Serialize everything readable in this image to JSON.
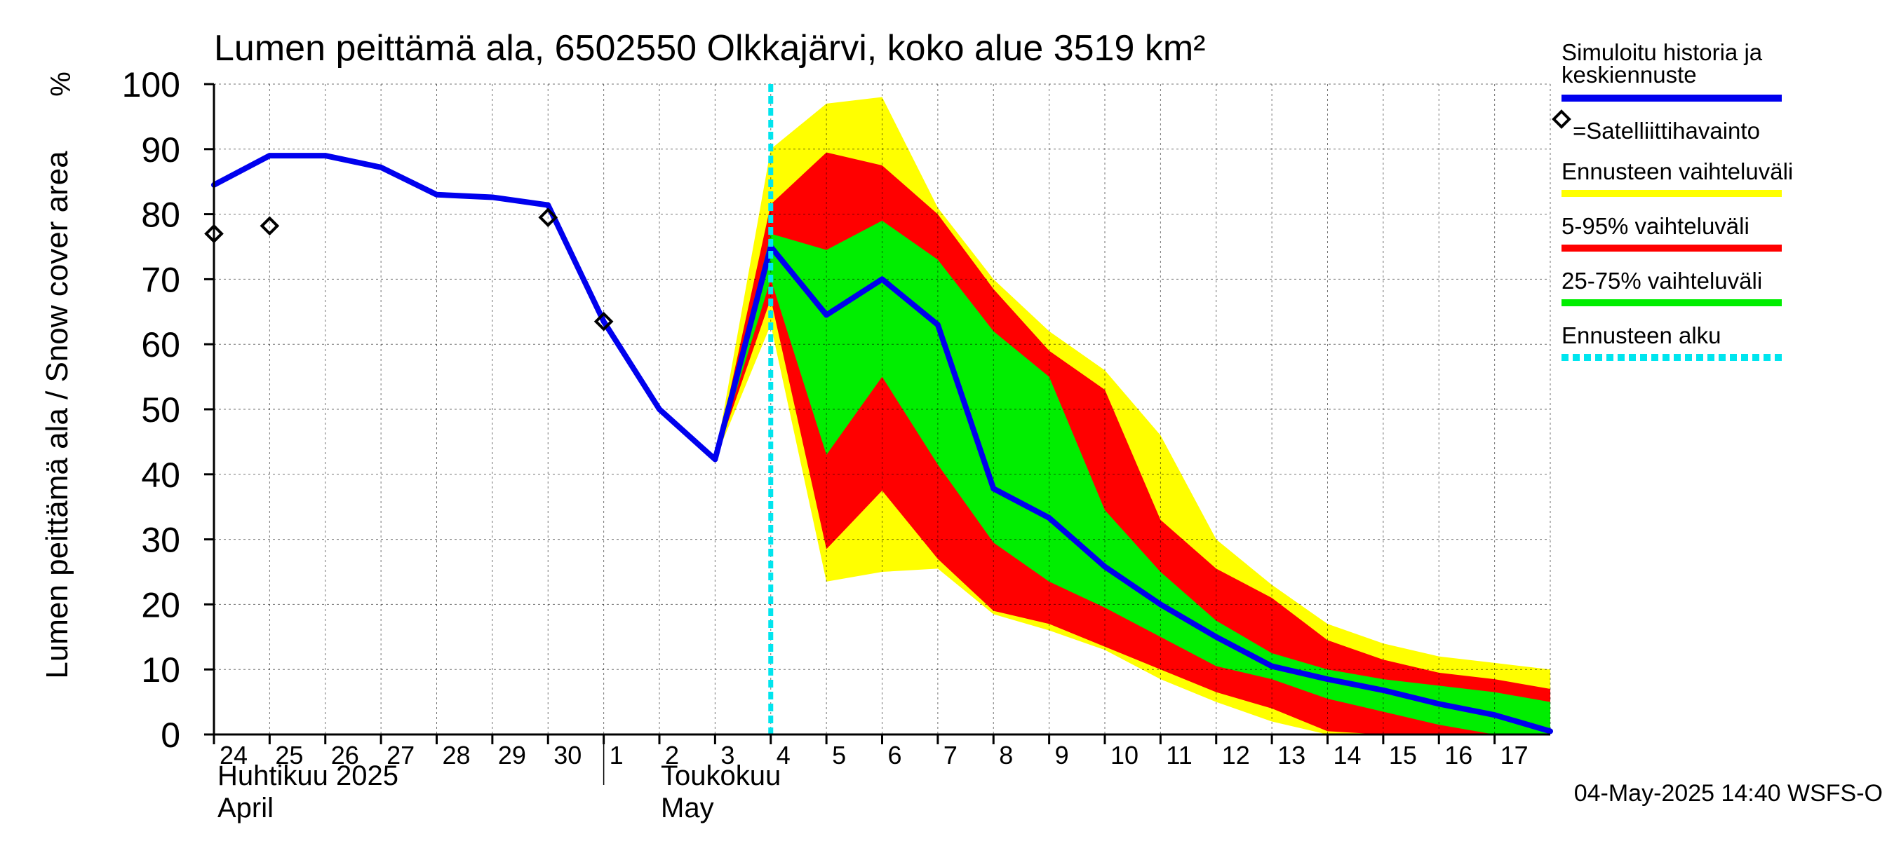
{
  "chart_data": {
    "type": "area",
    "title": "Lumen peittämä ala, 6502550 Olkkajärvi, koko alue 3519 km²",
    "ylabel": "Lumen peittämä ala / Snow cover area",
    "yunit": "%",
    "ylim": [
      0,
      100
    ],
    "yticks": [
      0,
      10,
      20,
      30,
      40,
      50,
      60,
      70,
      80,
      90,
      100
    ],
    "x_day_range": [
      0,
      24
    ],
    "x_ticks": [
      {
        "day": 0,
        "label": "24"
      },
      {
        "day": 1,
        "label": "25"
      },
      {
        "day": 2,
        "label": "26"
      },
      {
        "day": 3,
        "label": "27"
      },
      {
        "day": 4,
        "label": "28"
      },
      {
        "day": 5,
        "label": "29"
      },
      {
        "day": 6,
        "label": "30"
      },
      {
        "day": 7,
        "label": "1"
      },
      {
        "day": 8,
        "label": "2"
      },
      {
        "day": 9,
        "label": "3"
      },
      {
        "day": 10,
        "label": "4"
      },
      {
        "day": 11,
        "label": "5"
      },
      {
        "day": 12,
        "label": "6"
      },
      {
        "day": 13,
        "label": "7"
      },
      {
        "day": 14,
        "label": "8"
      },
      {
        "day": 15,
        "label": "9"
      },
      {
        "day": 16,
        "label": "10"
      },
      {
        "day": 17,
        "label": "11"
      },
      {
        "day": 18,
        "label": "12"
      },
      {
        "day": 19,
        "label": "13"
      },
      {
        "day": 20,
        "label": "14"
      },
      {
        "day": 21,
        "label": "15"
      },
      {
        "day": 22,
        "label": "16"
      },
      {
        "day": 23,
        "label": "17"
      }
    ],
    "months": [
      {
        "day": 0,
        "label_fi": "Huhtikuu  2025",
        "label_en": "April"
      },
      {
        "day": 8,
        "label_fi": "Toukokuu",
        "label_en": "May"
      }
    ],
    "month_divider_day": 7,
    "forecast_start_day": 10,
    "series": [
      {
        "name": "Simuloitu historia ja keskiennuste",
        "color": "#0000ee",
        "x": [
          0,
          1,
          2,
          3,
          4,
          5,
          6,
          7,
          8,
          9,
          10,
          11,
          12,
          13,
          14,
          15,
          16,
          17,
          18,
          19,
          20,
          21,
          22,
          23,
          24
        ],
        "values": [
          84.5,
          89,
          89,
          87.2,
          83,
          82.6,
          81.4,
          63.5,
          50,
          42.3,
          75,
          64.5,
          70,
          63,
          37.8,
          33.3,
          25.8,
          20,
          15,
          10.5,
          8.5,
          6.8,
          4.7,
          3,
          0.5
        ]
      }
    ],
    "bands": [
      {
        "name": "Ennusteen vaihteluväli",
        "color": "#ffff00",
        "x": [
          9,
          10,
          11,
          12,
          13,
          14,
          15,
          16,
          17,
          18,
          19,
          20,
          21,
          22,
          23,
          24
        ],
        "upper": [
          42.3,
          90,
          97,
          98,
          81,
          70,
          62,
          56,
          46,
          30,
          23,
          17,
          14,
          12,
          11,
          10
        ],
        "lower": [
          42.3,
          63,
          23.5,
          25,
          25.5,
          18.5,
          16,
          13,
          8.5,
          5,
          2,
          0,
          0,
          0,
          0,
          0
        ]
      },
      {
        "name": "5-95% vaihteluväli",
        "color": "#ff0000",
        "x": [
          9,
          10,
          11,
          12,
          13,
          14,
          15,
          16,
          17,
          18,
          19,
          20,
          21,
          22,
          23,
          24
        ],
        "upper": [
          42.3,
          81.5,
          89.5,
          87.5,
          80,
          68.5,
          59,
          53,
          33,
          25.5,
          21,
          14.5,
          11.5,
          9.5,
          8.5,
          7
        ],
        "lower": [
          42.3,
          67,
          28.5,
          37.5,
          27,
          19,
          17,
          13.5,
          10,
          6.5,
          4,
          0.5,
          0,
          0,
          0,
          0
        ]
      },
      {
        "name": "25-75% vaihteluväli",
        "color": "#00ee00",
        "x": [
          9,
          10,
          11,
          12,
          13,
          14,
          15,
          16,
          17,
          18,
          19,
          20,
          21,
          22,
          23,
          24
        ],
        "upper": [
          42.3,
          77,
          74.5,
          79,
          73,
          62,
          55,
          34.5,
          25,
          17.5,
          12.5,
          10,
          8.5,
          7.5,
          6.5,
          5
        ],
        "lower": [
          42.3,
          70,
          43,
          55,
          41.5,
          29.5,
          23.5,
          19.5,
          15,
          10.5,
          8.5,
          5.5,
          3.5,
          1.5,
          0,
          0
        ]
      }
    ],
    "satellite_observations": {
      "name": "=Satelliittihavainto",
      "points": [
        {
          "x": 0,
          "y": 77
        },
        {
          "x": 1,
          "y": 78.2
        },
        {
          "x": 6,
          "y": 79.5
        },
        {
          "x": 7,
          "y": 63.5
        }
      ]
    },
    "legend": {
      "placement": "right",
      "items": [
        {
          "label": "Simuloitu historia ja",
          "label2": "keskiennuste",
          "color": "#0000ee",
          "kind": "line"
        },
        {
          "label": "=Satelliittihavainto",
          "color": "#000000",
          "kind": "marker"
        },
        {
          "label": "Ennusteen vaihteluväli",
          "color": "#ffff00",
          "kind": "line"
        },
        {
          "label": "5-95% vaihteluväli",
          "color": "#ff0000",
          "kind": "line"
        },
        {
          "label": "25-75% vaihteluväli",
          "color": "#00ee00",
          "kind": "line"
        },
        {
          "label": "Ennusteen alku",
          "color": "#00e5ee",
          "kind": "dashed"
        }
      ]
    },
    "grid": true,
    "footer": "04-May-2025 14:40 WSFS-O"
  }
}
